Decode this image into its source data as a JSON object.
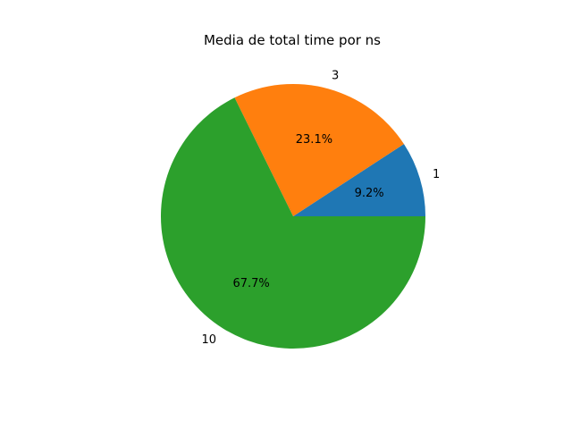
{
  "chart_data": {
    "type": "pie",
    "title": "Media de total time por ns",
    "labels": [
      "1",
      "3",
      "10"
    ],
    "percentages": [
      "9.2%",
      "23.1%",
      "67.7%"
    ],
    "values": [
      9.2,
      23.1,
      67.7
    ],
    "colors": [
      "#1f77b4",
      "#ff7f0e",
      "#2ca02c"
    ],
    "start_angle_deg": 0,
    "direction": "counterclockwise",
    "legend": false
  }
}
